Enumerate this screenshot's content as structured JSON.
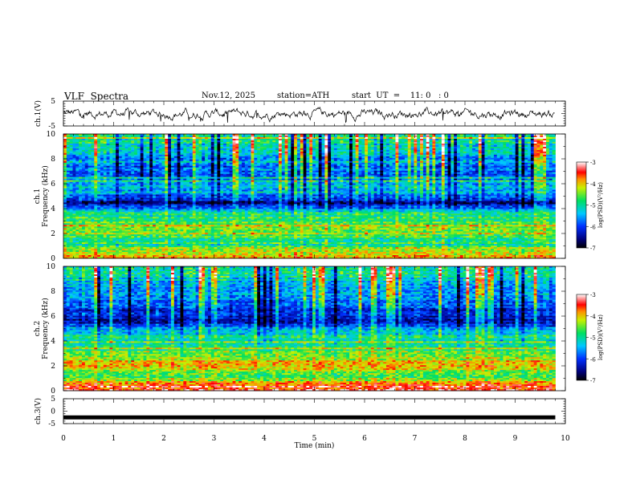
{
  "header": {
    "title": "VLF  Spectra",
    "date": "Nov.12, 2025",
    "station": "station=ATH",
    "start": "start  UT  =    11: 0   : 0"
  },
  "chart_data": [
    {
      "type": "line",
      "id": "ch1-waveform",
      "ylabel": "ch.1(V)",
      "xlim": [
        0,
        10
      ],
      "ylim": [
        -5,
        5
      ],
      "yticks": [
        "5",
        "-5"
      ],
      "series": [
        {
          "x_range": [
            0,
            9.8
          ],
          "baseline": 0,
          "amplitude_typical": 1.5,
          "spikes_min": -3.8
        }
      ]
    },
    {
      "type": "heatmap",
      "id": "ch1-spectrogram",
      "ylabel": "ch.1\nFrequency  (kHz)",
      "xlim": [
        0,
        10
      ],
      "ylim": [
        0,
        10
      ],
      "yticks": [
        "0",
        "2",
        "4",
        "6",
        "8",
        "10"
      ],
      "x_data_range": [
        0,
        9.8
      ],
      "colorbar": {
        "label": "log(PSD)(V²/Hz)",
        "range": [
          -7,
          -3
        ],
        "ticks": [
          "-3",
          "-4",
          "-5",
          "-6",
          "-7"
        ]
      },
      "bands": [
        {
          "freq_khz": 0.2,
          "level": -3.8
        },
        {
          "freq_khz": 0.7,
          "level": -4.3
        },
        {
          "freq_khz": 1.2,
          "level": -5.3
        },
        {
          "freq_khz": 2.0,
          "level": -4.4
        },
        {
          "freq_khz": 3.6,
          "level": -5.0
        },
        {
          "freq_khz": 4.5,
          "level": -6.7
        },
        {
          "freq_khz": 5.3,
          "level": -5.4
        },
        {
          "freq_khz": 7.5,
          "level": -5.8
        },
        {
          "freq_khz": 9.5,
          "level": -4.9
        }
      ]
    },
    {
      "type": "heatmap",
      "id": "ch2-spectrogram",
      "ylabel": "ch.2\nFrequency  (kHz)",
      "xlim": [
        0,
        10
      ],
      "ylim": [
        0,
        10
      ],
      "yticks": [
        "0",
        "2",
        "4",
        "6",
        "8",
        "10"
      ],
      "x_data_range": [
        0,
        9.8
      ],
      "colorbar": {
        "label": "log(PSD)(V²/Hz)",
        "range": [
          -7,
          -3
        ],
        "ticks": [
          "-3",
          "-4",
          "-5",
          "-6",
          "-7"
        ]
      },
      "bands": [
        {
          "freq_khz": 0.3,
          "level": -3.5
        },
        {
          "freq_khz": 1.0,
          "level": -4.6
        },
        {
          "freq_khz": 2.0,
          "level": -4.1
        },
        {
          "freq_khz": 3.5,
          "level": -4.8
        },
        {
          "freq_khz": 4.7,
          "level": -5.2
        },
        {
          "freq_khz": 5.5,
          "level": -6.4
        },
        {
          "freq_khz": 7.5,
          "level": -5.7
        },
        {
          "freq_khz": 9.5,
          "level": -5.0
        }
      ]
    },
    {
      "type": "line",
      "id": "ch3-waveform",
      "ylabel": "ch.3(V)",
      "xlabel": "Time  (min)",
      "xlim": [
        0,
        10
      ],
      "ylim": [
        -5,
        5
      ],
      "yticks": [
        "5",
        "0",
        "-5"
      ],
      "xticks": [
        "0",
        "1",
        "2",
        "3",
        "4",
        "5",
        "6",
        "7",
        "8",
        "9",
        "10"
      ],
      "series": [
        {
          "x_range": [
            0,
            9.8
          ],
          "level": -2.5
        }
      ]
    }
  ]
}
